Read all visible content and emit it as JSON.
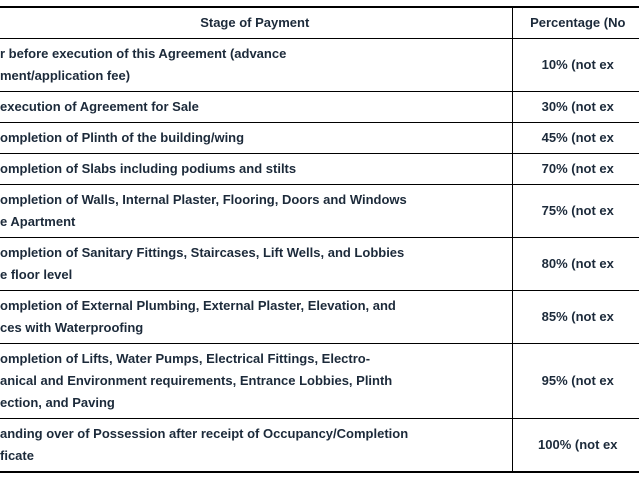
{
  "table": {
    "name": "payment-schedule",
    "header": {
      "stage": "Stage of Payment",
      "percentage": "Percentage (No"
    },
    "rows": [
      {
        "stage": "r before execution of this Agreement (advance\nment/application fee)",
        "percentage": "10% (not ex"
      },
      {
        "stage": "execution of Agreement for Sale",
        "percentage": "30% (not ex"
      },
      {
        "stage": "ompletion of Plinth of the building/wing",
        "percentage": "45% (not ex"
      },
      {
        "stage": "ompletion of Slabs including podiums and stilts",
        "percentage": "70% (not ex"
      },
      {
        "stage": "ompletion of Walls, Internal Plaster, Flooring, Doors and Windows\ne Apartment",
        "percentage": "75% (not ex"
      },
      {
        "stage": "ompletion of Sanitary Fittings, Staircases, Lift Wells, and Lobbies\ne floor level",
        "percentage": "80% (not ex"
      },
      {
        "stage": "ompletion of External Plumbing, External Plaster, Elevation, and\nces with Waterproofing",
        "percentage": "85% (not ex"
      },
      {
        "stage": "ompletion of Lifts, Water Pumps, Electrical Fittings, Electro-\nanical and Environment requirements, Entrance Lobbies, Plinth\nection, and Paving",
        "percentage": "95% (not ex"
      },
      {
        "stage": "anding over of Possession after receipt of Occupancy/Completion\nficate",
        "percentage": "100% (not ex"
      }
    ]
  },
  "colors": {
    "border": "#000000",
    "text": "#1c2a3a",
    "background": "#ffffff"
  }
}
